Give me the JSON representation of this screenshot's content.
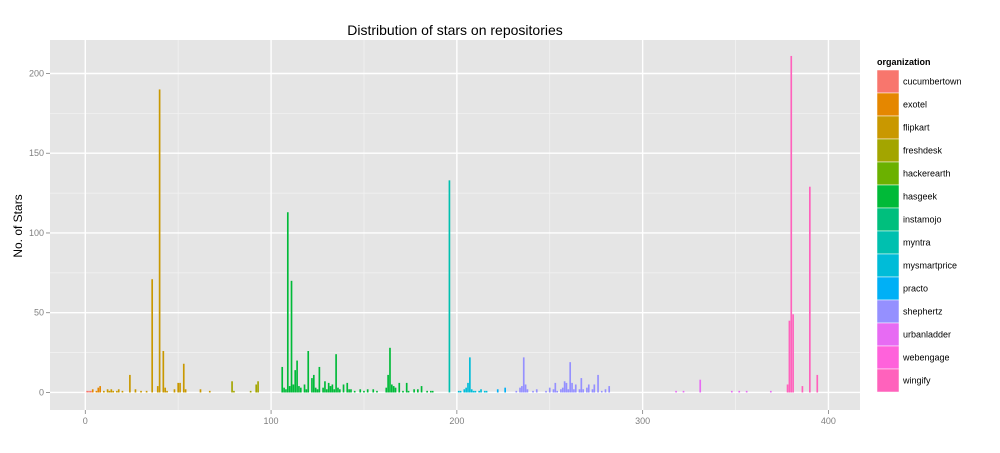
{
  "chart_data": {
    "type": "bar",
    "title": "Distribution of stars on repositories",
    "xlabel": "",
    "ylabel": "No. of Stars",
    "xlim": [
      -19,
      417
    ],
    "ylim": [
      -11,
      221
    ],
    "x_ticks": [
      0,
      100,
      200,
      300,
      400
    ],
    "y_ticks": [
      0,
      50,
      100,
      150,
      200
    ],
    "grid": true,
    "legend_position": "right",
    "legend_title": "organization",
    "series": [
      {
        "name": "cucumbertown",
        "color": "#F8766D",
        "x": [
          1,
          2,
          3
        ],
        "y": [
          1,
          1,
          1
        ]
      },
      {
        "name": "exotel",
        "color": "#E58700",
        "x": [
          4,
          6,
          7,
          8
        ],
        "y": [
          2,
          1,
          3,
          4
        ]
      },
      {
        "name": "flipkart",
        "color": "#C99800",
        "x": [
          10,
          12,
          13,
          14,
          15,
          17,
          18,
          20,
          24,
          27,
          30,
          33,
          36,
          39,
          40,
          42,
          43,
          44,
          48,
          50,
          51,
          53,
          54,
          62,
          67
        ],
        "y": [
          1,
          2,
          1,
          2,
          1,
          1,
          2,
          1,
          11,
          2,
          1,
          1,
          71,
          4,
          190,
          26,
          3,
          1,
          2,
          6,
          6,
          18,
          2,
          2,
          1
        ]
      },
      {
        "name": "freshdesk",
        "color": "#A3A500",
        "x": [
          79,
          80,
          89,
          92,
          93
        ],
        "y": [
          7,
          1,
          1,
          5,
          7
        ]
      },
      {
        "name": "hackerearth",
        "color": "#6BB100",
        "x": [],
        "y": []
      },
      {
        "name": "hasgeek",
        "color": "#00BA38",
        "x": [
          106,
          107,
          108,
          109,
          110,
          111,
          112,
          113,
          114,
          115,
          116,
          118,
          119,
          120,
          122,
          123,
          124,
          125,
          126,
          128,
          129,
          130,
          131,
          132,
          133,
          134,
          135,
          136,
          137,
          139,
          141,
          142,
          143,
          145,
          148,
          150,
          152,
          155,
          157,
          162,
          163,
          164,
          165,
          166,
          167,
          169,
          171,
          173,
          174,
          177,
          179,
          181,
          184,
          186,
          187
        ],
        "y": [
          16,
          3,
          2,
          113,
          4,
          70,
          5,
          14,
          20,
          4,
          3,
          5,
          2,
          26,
          9,
          11,
          3,
          2,
          16,
          3,
          7,
          2,
          6,
          4,
          5,
          2,
          24,
          3,
          2,
          5,
          6,
          2,
          2,
          1,
          2,
          1,
          2,
          2,
          1,
          3,
          11,
          28,
          5,
          4,
          3,
          6,
          1,
          6,
          1,
          2,
          2,
          4,
          1,
          1,
          1
        ]
      },
      {
        "name": "instamojo",
        "color": "#00BF7D",
        "x": [],
        "y": []
      },
      {
        "name": "myntra",
        "color": "#00C0AF",
        "x": [
          196
        ],
        "y": [
          133
        ]
      },
      {
        "name": "mysmartprice",
        "color": "#00BCD8",
        "x": [
          201,
          202,
          204,
          205,
          206,
          207,
          208,
          209,
          210,
          212,
          213,
          215,
          216
        ],
        "y": [
          1,
          1,
          2,
          3,
          6,
          22,
          2,
          1,
          1,
          1,
          2,
          1,
          1
        ]
      },
      {
        "name": "practo",
        "color": "#00B0F6",
        "x": [
          222,
          226
        ],
        "y": [
          2,
          3
        ]
      },
      {
        "name": "shephertz",
        "color": "#9590FF",
        "x": [
          232,
          234,
          235,
          236,
          237,
          238,
          241,
          243,
          248,
          250,
          252,
          253,
          254,
          256,
          257,
          258,
          259,
          260,
          261,
          262,
          263,
          264,
          266,
          267,
          268,
          270,
          271,
          273,
          274,
          276,
          278,
          280,
          282
        ],
        "y": [
          1,
          3,
          4,
          22,
          5,
          2,
          1,
          2,
          1,
          3,
          2,
          6,
          1,
          2,
          3,
          7,
          6,
          2,
          19,
          6,
          2,
          5,
          2,
          9,
          2,
          3,
          5,
          2,
          5,
          11,
          1,
          2,
          4
        ]
      },
      {
        "name": "urbanladder",
        "color": "#D89000",
        "x": [],
        "y": []
      },
      {
        "name": "urbanladder",
        "color": "#E76BF3",
        "x": [
          318,
          322,
          331,
          348,
          352,
          356,
          369
        ],
        "y": [
          1,
          1,
          8,
          1,
          1,
          1,
          1
        ]
      },
      {
        "name": "webengage",
        "color": "#FA62DB",
        "x": [],
        "y": []
      },
      {
        "name": "wingify",
        "color": "#FF62BC",
        "x": [
          378,
          379,
          380,
          381,
          386,
          390,
          394
        ],
        "y": [
          5,
          45,
          211,
          49,
          4,
          129,
          11
        ]
      }
    ]
  },
  "legend_items": [
    {
      "label": "cucumbertown",
      "color": "#F8766D"
    },
    {
      "label": "exotel",
      "color": "#E58700"
    },
    {
      "label": "flipkart",
      "color": "#C99800"
    },
    {
      "label": "freshdesk",
      "color": "#A3A500"
    },
    {
      "label": "hackerearth",
      "color": "#6BB100"
    },
    {
      "label": "hasgeek",
      "color": "#00BA38"
    },
    {
      "label": "instamojo",
      "color": "#00BF7D"
    },
    {
      "label": "myntra",
      "color": "#00C0AF"
    },
    {
      "label": "mysmartprice",
      "color": "#00BCD8"
    },
    {
      "label": "practo",
      "color": "#00B0F6"
    },
    {
      "label": "shephertz",
      "color": "#9590FF"
    },
    {
      "label": "urbanladder",
      "color": "#E76BF3"
    },
    {
      "label": "webengage",
      "color": "#FF62DB"
    },
    {
      "label": "wingify",
      "color": "#FF62BC"
    }
  ],
  "colors": {
    "panel_background": "#E5E5E5",
    "grid_major": "#FFFFFF",
    "grid_minor": "#F2F2F2"
  }
}
